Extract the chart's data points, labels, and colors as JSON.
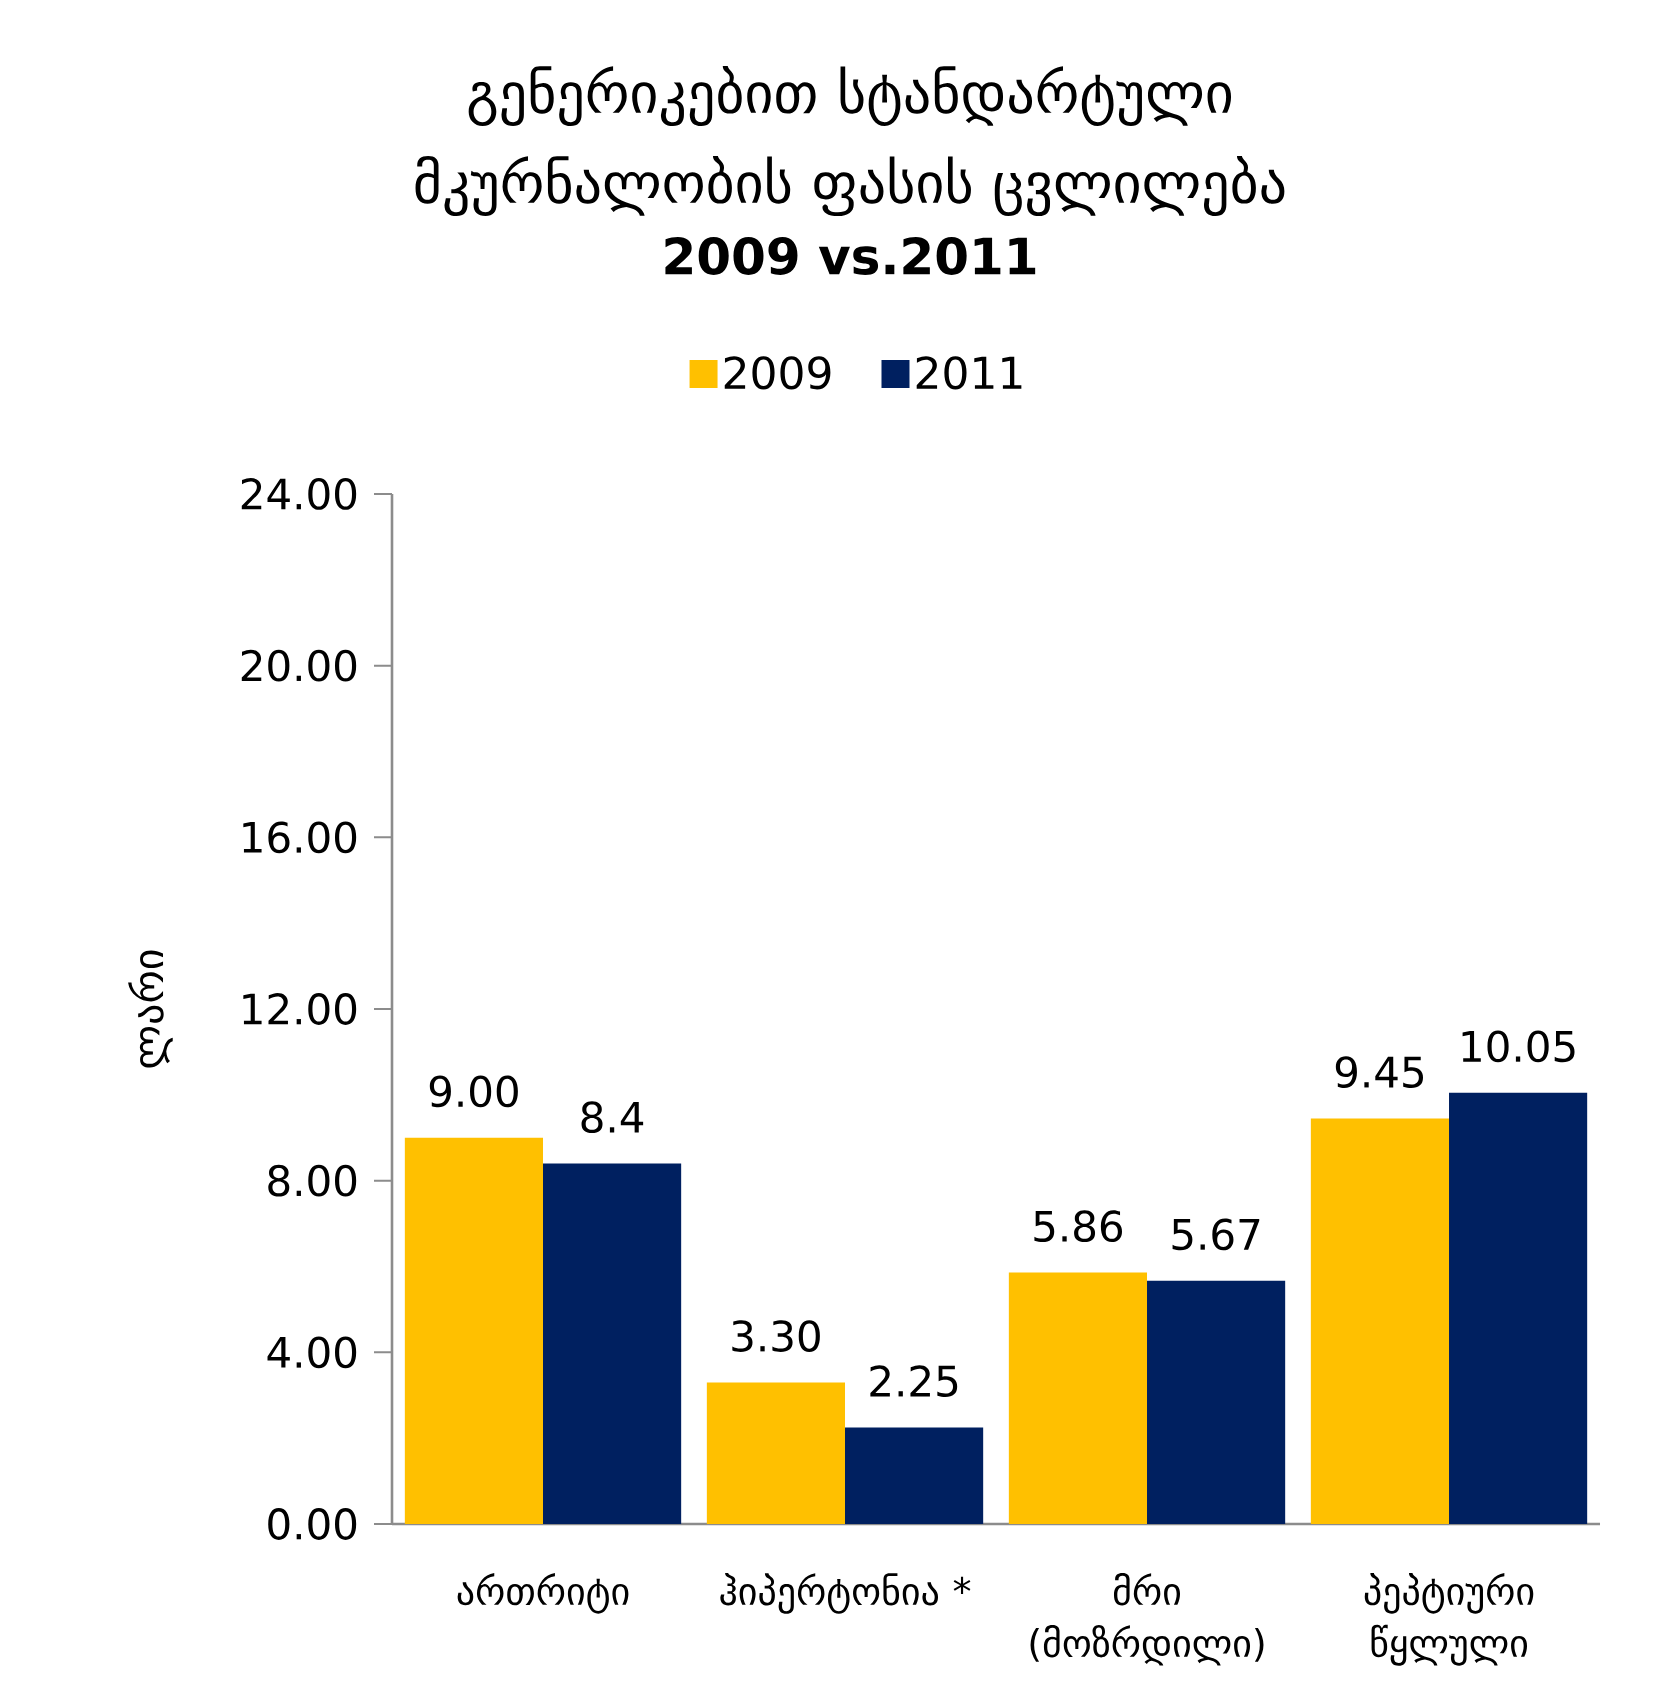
{
  "chart_data": {
    "type": "bar",
    "title": "გენერიკებით სტანდარტული მკურნალობის ფასის ცვლილება",
    "subtitle": "2009 vs.2011",
    "ylabel": "ლარი",
    "categories": [
      "ართრიტი",
      "ჰიპერტონია *",
      "მრი (მოზრდილი)",
      "პეპტიური წყლული"
    ],
    "series": [
      {
        "name": "2009",
        "color": "#ffc000",
        "values": [
          9.0,
          3.3,
          5.86,
          9.45
        ],
        "value_labels": [
          "9.00",
          "3.30",
          "5.86",
          "9.45"
        ]
      },
      {
        "name": "2011",
        "color": "#002060",
        "values": [
          8.4,
          2.25,
          5.67,
          10.05
        ],
        "value_labels": [
          "8.4",
          "2.25",
          "5.67",
          "10.05"
        ]
      }
    ],
    "ylim": [
      0,
      24
    ],
    "yticks": [
      {
        "value": 0,
        "label": "0.00"
      },
      {
        "value": 4,
        "label": "4.00"
      },
      {
        "value": 8,
        "label": "8.00"
      },
      {
        "value": 12,
        "label": "12.00"
      },
      {
        "value": 16,
        "label": "16.00"
      },
      {
        "value": 20,
        "label": "20.00"
      },
      {
        "value": 24,
        "label": "24.00"
      }
    ],
    "legend": "top",
    "grid": false
  }
}
